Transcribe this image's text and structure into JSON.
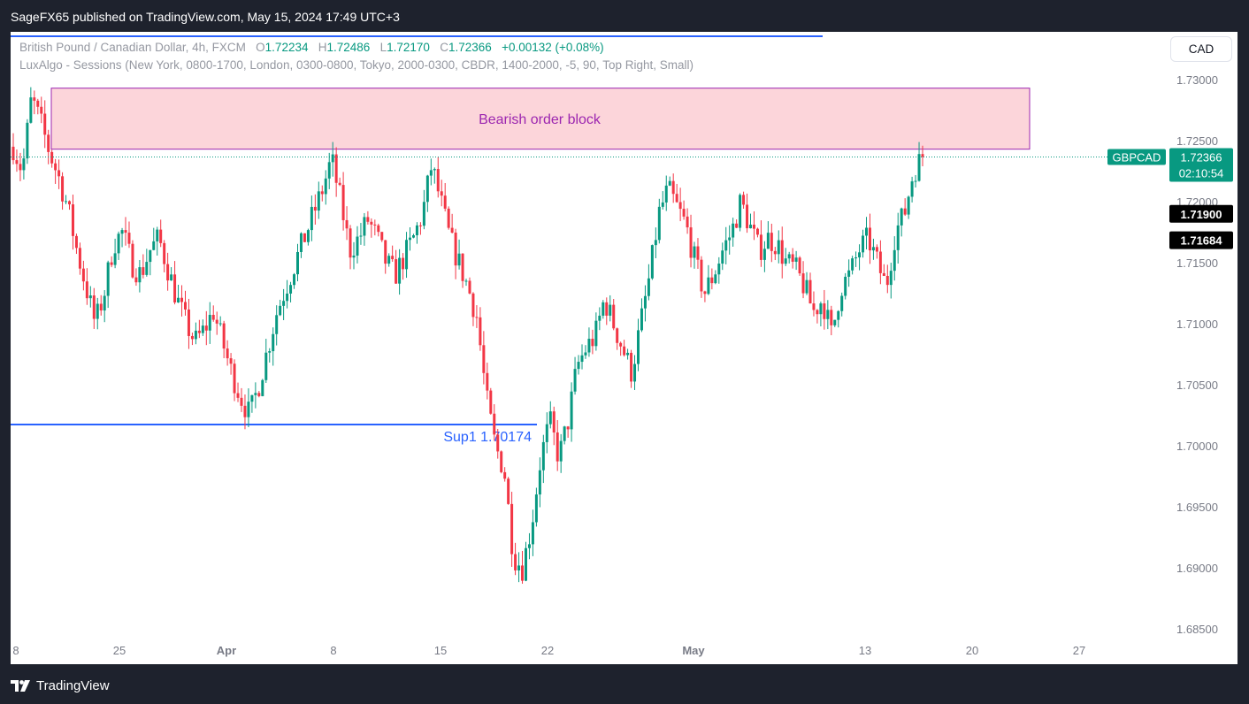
{
  "header": {
    "publisher_line": "SageFX65 published on TradingView.com, May 15, 2024 17:49 UTC+3"
  },
  "footer": {
    "brand": "TradingView"
  },
  "legend": {
    "symbol_desc": "British Pound / Canadian Dollar, 4h, FXCM",
    "o_label": "O",
    "o_value": "1.72234",
    "h_label": "H",
    "h_value": "1.72486",
    "l_label": "L",
    "l_value": "1.72170",
    "c_label": "C",
    "c_value": "1.72366",
    "change": "+0.00132 (+0.08%)",
    "indicator": "LuxAlgo - Sessions (New York, 0800-1700, London, 0300-0800, Tokyo, 2000-0300, CBDR, 1400-2000, -5, 90, Top Right, Small)"
  },
  "currency_button": "CAD",
  "colors": {
    "up": "#089981",
    "down": "#f23645",
    "support": "#2962ff",
    "order_block_fill": "#fcd5da",
    "order_block_border": "#9c27b0",
    "order_block_text": "#9c27b0",
    "axis_text": "#787b86"
  },
  "chart_data": {
    "type": "candlestick",
    "symbol": "GBPCAD",
    "timeframe": "4h",
    "ylim": [
      1.684,
      1.7325
    ],
    "y_ticks": [
      "1.73000",
      "1.72500",
      "1.72000",
      "1.71500",
      "1.71000",
      "1.70500",
      "1.70000",
      "1.69500",
      "1.69000",
      "1.68500"
    ],
    "x_ticks": [
      "8",
      "25",
      "Apr",
      "8",
      "15",
      "22",
      "May",
      "13",
      "20",
      "27"
    ],
    "price_labels": [
      {
        "text": "GBPCAD",
        "kind": "symbol"
      },
      {
        "text": "1.72366",
        "kind": "last"
      },
      {
        "text": "02:10:54",
        "kind": "countdown"
      },
      {
        "text": "1.71900",
        "kind": "level"
      },
      {
        "text": "1.71684",
        "kind": "level"
      }
    ],
    "last_price": 1.72366,
    "level_marks": [
      1.719,
      1.71684
    ],
    "annotations": {
      "order_block": {
        "label": "Bearish order block",
        "top": 1.7293,
        "bottom": 1.7243
      },
      "support": {
        "label": "Sup1 1.70174",
        "price": 1.70174
      }
    },
    "close_path": [
      1.7245,
      1.7225,
      1.7285,
      1.7265,
      1.724,
      1.722,
      1.7195,
      1.716,
      1.713,
      1.71,
      1.7125,
      1.7165,
      1.7175,
      1.715,
      1.714,
      1.716,
      1.717,
      1.7145,
      1.712,
      1.71,
      1.7085,
      1.7095,
      1.711,
      1.7085,
      1.706,
      1.704,
      1.7025,
      1.705,
      1.708,
      1.711,
      1.713,
      1.715,
      1.717,
      1.719,
      1.721,
      1.7235,
      1.72,
      1.716,
      1.717,
      1.7185,
      1.717,
      1.715,
      1.714,
      1.7155,
      1.717,
      1.719,
      1.723,
      1.72,
      1.717,
      1.715,
      1.713,
      1.7105,
      1.704,
      1.7,
      1.698,
      1.691,
      1.69,
      1.6935,
      1.699,
      1.702,
      1.699,
      1.702,
      1.7065,
      1.708,
      1.709,
      1.712,
      1.71,
      1.708,
      1.706,
      1.71,
      1.714,
      1.719,
      1.721,
      1.7195,
      1.718,
      1.715,
      1.7125,
      1.714,
      1.716,
      1.7175,
      1.72,
      1.718,
      1.716,
      1.717,
      1.7165,
      1.715,
      1.7145,
      1.713,
      1.711,
      1.712,
      1.709,
      1.713,
      1.714,
      1.716,
      1.717,
      1.715,
      1.713,
      1.7175,
      1.719,
      1.7225,
      1.7237
    ]
  }
}
